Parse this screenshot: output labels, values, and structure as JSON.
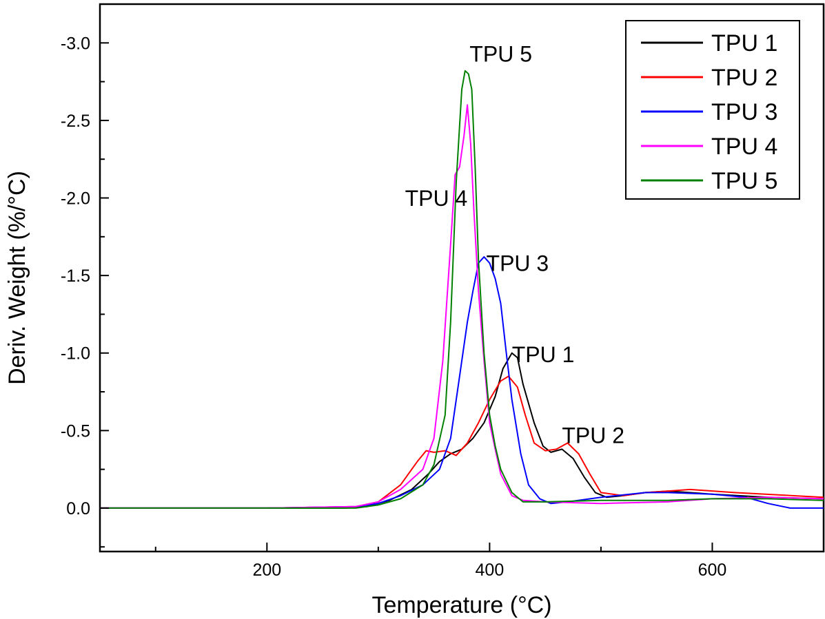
{
  "chart_data": {
    "type": "line",
    "xlabel": "Temperature (°C)",
    "ylabel": "Deriv. Weight (%/°C)",
    "xlim": [
      50,
      700
    ],
    "ylim": [
      -3.25,
      0.28
    ],
    "y_inverted": true,
    "grid": false,
    "legend_position": "top-right",
    "x_ticks": [
      200,
      400,
      600
    ],
    "x_tick_labels": [
      "200",
      "400",
      "600"
    ],
    "y_ticks": [
      -3.0,
      -2.5,
      -2.0,
      -1.5,
      -1.0,
      -0.5,
      0.0
    ],
    "y_tick_labels": [
      "-3.0",
      "-2.5",
      "-2.0",
      "-1.5",
      "-1.0",
      "-0.5",
      "0.0"
    ],
    "series": [
      {
        "name": "TPU 1",
        "color": "#000000",
        "x": [
          50,
          200,
          270,
          290,
          310,
          330,
          345,
          355,
          365,
          375,
          385,
          395,
          405,
          412,
          420,
          425,
          430,
          440,
          448,
          455,
          465,
          475,
          485,
          495,
          505,
          520,
          540,
          560,
          600,
          650,
          700
        ],
        "y": [
          0,
          0,
          0,
          -0.01,
          -0.05,
          -0.12,
          -0.22,
          -0.3,
          -0.35,
          -0.38,
          -0.45,
          -0.55,
          -0.72,
          -0.9,
          -1.0,
          -0.97,
          -0.8,
          -0.55,
          -0.4,
          -0.36,
          -0.38,
          -0.32,
          -0.2,
          -0.1,
          -0.07,
          -0.08,
          -0.1,
          -0.11,
          -0.09,
          -0.07,
          -0.06
        ]
      },
      {
        "name": "TPU 2",
        "color": "#ff0000",
        "x": [
          50,
          200,
          280,
          300,
          320,
          335,
          343,
          350,
          360,
          370,
          380,
          390,
          400,
          410,
          417,
          425,
          432,
          440,
          450,
          460,
          470,
          480,
          490,
          500,
          520,
          540,
          560,
          580,
          620,
          700
        ],
        "y": [
          0,
          0,
          -0.01,
          -0.04,
          -0.15,
          -0.3,
          -0.37,
          -0.36,
          -0.37,
          -0.34,
          -0.42,
          -0.55,
          -0.7,
          -0.82,
          -0.85,
          -0.78,
          -0.6,
          -0.42,
          -0.37,
          -0.38,
          -0.42,
          -0.35,
          -0.22,
          -0.1,
          -0.08,
          -0.1,
          -0.11,
          -0.12,
          -0.1,
          -0.07
        ]
      },
      {
        "name": "TPU 3",
        "color": "#0000ff",
        "x": [
          50,
          200,
          280,
          300,
          320,
          340,
          355,
          365,
          372,
          380,
          385,
          390,
          395,
          400,
          405,
          410,
          415,
          420,
          428,
          435,
          445,
          455,
          470,
          500,
          540,
          560,
          600,
          630,
          650,
          670,
          700
        ],
        "y": [
          0,
          0,
          -0.01,
          -0.03,
          -0.08,
          -0.15,
          -0.25,
          -0.45,
          -0.8,
          -1.2,
          -1.4,
          -1.58,
          -1.62,
          -1.58,
          -1.48,
          -1.32,
          -1.0,
          -0.7,
          -0.35,
          -0.15,
          -0.06,
          -0.03,
          -0.04,
          -0.07,
          -0.1,
          -0.1,
          -0.09,
          -0.07,
          -0.03,
          0.0,
          0.0
        ]
      },
      {
        "name": "TPU 4",
        "color": "#ff00ff",
        "x": [
          50,
          200,
          280,
          300,
          320,
          340,
          350,
          358,
          365,
          369,
          373,
          377,
          380,
          383,
          386,
          390,
          395,
          400,
          405,
          410,
          420,
          430,
          450,
          500,
          560,
          600,
          650,
          700
        ],
        "y": [
          0,
          0,
          -0.01,
          -0.04,
          -0.12,
          -0.25,
          -0.45,
          -0.95,
          -1.7,
          -2.15,
          -2.2,
          -2.4,
          -2.6,
          -2.35,
          -1.9,
          -1.4,
          -0.95,
          -0.55,
          -0.38,
          -0.22,
          -0.08,
          -0.05,
          -0.04,
          -0.03,
          -0.04,
          -0.06,
          -0.07,
          -0.06
        ]
      },
      {
        "name": "TPU 5",
        "color": "#008000",
        "x": [
          50,
          200,
          280,
          300,
          320,
          340,
          350,
          360,
          365,
          370,
          375,
          378,
          381,
          384,
          387,
          390,
          395,
          400,
          405,
          410,
          420,
          430,
          450,
          500,
          560,
          600,
          650,
          700
        ],
        "y": [
          0,
          0,
          0,
          -0.02,
          -0.06,
          -0.15,
          -0.28,
          -0.6,
          -1.2,
          -2.1,
          -2.7,
          -2.82,
          -2.8,
          -2.7,
          -2.2,
          -1.6,
          -1.0,
          -0.6,
          -0.4,
          -0.25,
          -0.1,
          -0.04,
          -0.04,
          -0.05,
          -0.05,
          -0.06,
          -0.06,
          -0.05
        ]
      }
    ],
    "annotations": [
      {
        "text": "TPU 5",
        "x": 382,
        "y": -2.88
      },
      {
        "text": "TPU 4",
        "x": 324,
        "y": -1.95
      },
      {
        "text": "TPU 3",
        "x": 397,
        "y": -1.53
      },
      {
        "text": "TPU 1",
        "x": 420,
        "y": -0.94
      },
      {
        "text": "TPU 2",
        "x": 465,
        "y": -0.42
      }
    ]
  }
}
